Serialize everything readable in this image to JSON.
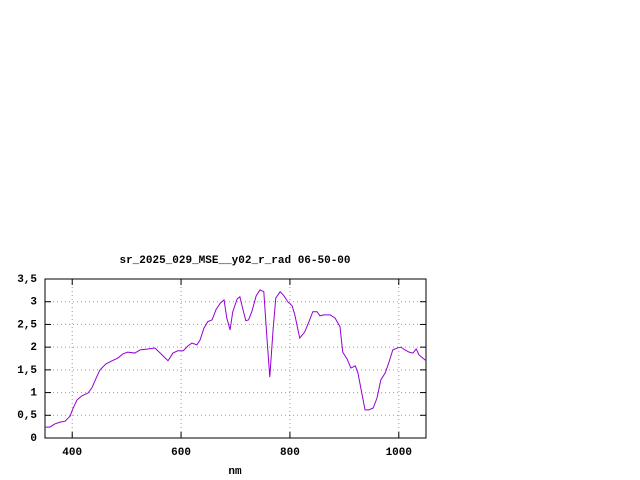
{
  "chart_data": {
    "type": "line",
    "title": "sr_2025_029_MSE__y02_r_rad 06-50-00",
    "x_label": "nm",
    "x": [
      350,
      359,
      368,
      378,
      387,
      396,
      401,
      409,
      418,
      429,
      436,
      444,
      451,
      462,
      473,
      484,
      493,
      502,
      515,
      525,
      539,
      552,
      565,
      576,
      585,
      594,
      604,
      613,
      620,
      629,
      635,
      642,
      649,
      657,
      664,
      672,
      679,
      684,
      690,
      695,
      703,
      708,
      713,
      719,
      724,
      730,
      738,
      745,
      752,
      758,
      763,
      769,
      774,
      782,
      789,
      796,
      804,
      809,
      818,
      827,
      835,
      842,
      850,
      855,
      863,
      874,
      883,
      892,
      897,
      905,
      912,
      920,
      925,
      932,
      938,
      945,
      953,
      960,
      967,
      975,
      982,
      989,
      997,
      1004,
      1011,
      1019,
      1026,
      1032,
      1037,
      1044,
      1050
    ],
    "series": [
      {
        "color": "#9400d3",
        "values": [
          0.24,
          0.24,
          0.31,
          0.35,
          0.37,
          0.48,
          0.64,
          0.84,
          0.93,
          0.99,
          1.1,
          1.32,
          1.5,
          1.63,
          1.7,
          1.76,
          1.85,
          1.89,
          1.87,
          1.94,
          1.96,
          1.98,
          1.83,
          1.7,
          1.87,
          1.92,
          1.92,
          2.03,
          2.09,
          2.05,
          2.16,
          2.42,
          2.56,
          2.6,
          2.82,
          2.97,
          3.04,
          2.64,
          2.38,
          2.78,
          3.06,
          3.11,
          2.86,
          2.58,
          2.6,
          2.78,
          3.13,
          3.26,
          3.22,
          2.16,
          1.34,
          2.38,
          3.08,
          3.22,
          3.13,
          3.0,
          2.91,
          2.71,
          2.2,
          2.33,
          2.56,
          2.78,
          2.78,
          2.69,
          2.71,
          2.71,
          2.64,
          2.45,
          1.89,
          1.74,
          1.54,
          1.59,
          1.43,
          0.99,
          0.62,
          0.62,
          0.66,
          0.88,
          1.28,
          1.43,
          1.67,
          1.94,
          1.98,
          2.0,
          1.94,
          1.89,
          1.87,
          1.96,
          1.83,
          1.76,
          1.7
        ]
      }
    ],
    "xlim": [
      350,
      1050
    ],
    "xticks": [
      400,
      600,
      800,
      1000
    ],
    "ylim": [
      0,
      3.5
    ],
    "yticks": [
      0,
      {
        "value": 0.5,
        "label": "0,5"
      },
      1,
      {
        "value": 1.5,
        "label": "1,5"
      },
      2,
      {
        "value": 2.5,
        "label": "2,5"
      },
      3,
      {
        "value": 3.5,
        "label": "3,5"
      }
    ],
    "grid": true
  }
}
